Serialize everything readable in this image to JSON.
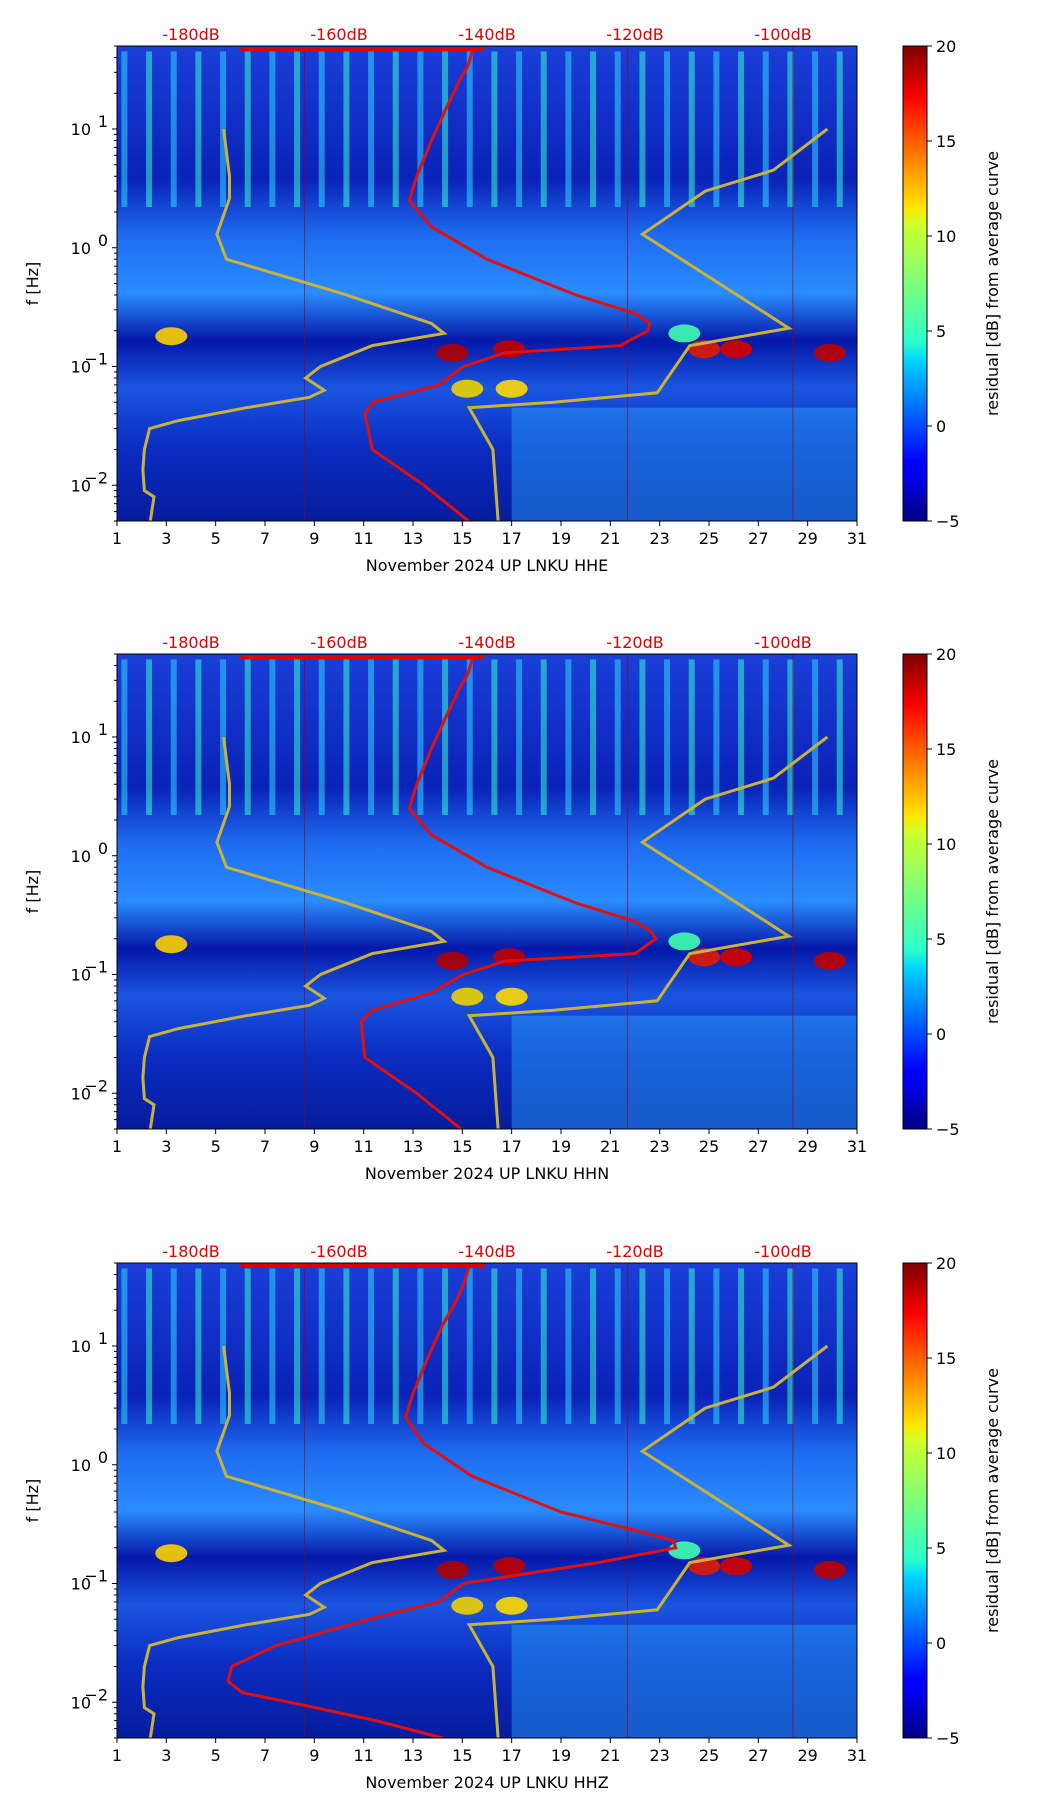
{
  "chart_data": [
    {
      "type": "heatmap",
      "channel": "HHE",
      "xlabel": "November 2024 UP LNKU  HHE",
      "ylabel": "f [Hz]",
      "x_ticks": [
        "1",
        "3",
        "5",
        "7",
        "9",
        "11",
        "13",
        "15",
        "17",
        "19",
        "21",
        "23",
        "25",
        "27",
        "29",
        "31"
      ],
      "x_range": [
        1,
        31
      ],
      "y_ticks": [
        {
          "value": 0.01,
          "base": "10",
          "exp": "−2"
        },
        {
          "value": 0.1,
          "base": "10",
          "exp": "−1"
        },
        {
          "value": 1,
          "base": "10",
          "exp": "0"
        },
        {
          "value": 10,
          "base": "10",
          "exp": "1"
        }
      ],
      "y_range": [
        0.005,
        50
      ],
      "db_labels": [
        "-180dB",
        "-160dB",
        "-140dB",
        "-120dB",
        "-100dB"
      ],
      "db_range": [
        -190,
        -90
      ],
      "colorbar": {
        "label": "residual [dB] from average curve",
        "ticks": [
          "20",
          "15",
          "10",
          "5",
          "0",
          "−5"
        ],
        "range": [
          -5,
          20
        ]
      },
      "noise_model_curve": [
        [
          -185.5,
          0.005
        ],
        [
          -185.0,
          0.008
        ],
        [
          -186.3,
          0.009
        ],
        [
          -186.5,
          0.0135
        ],
        [
          -186.3,
          0.02
        ],
        [
          -185.6,
          0.03
        ],
        [
          -181.7,
          0.035
        ],
        [
          -172.5,
          0.045
        ],
        [
          -164.0,
          0.055
        ],
        [
          -162.0,
          0.063
        ],
        [
          -164.5,
          0.08
        ],
        [
          -162.5,
          0.1
        ],
        [
          -155.5,
          0.15
        ],
        [
          -145.8,
          0.19
        ],
        [
          -147.5,
          0.23
        ],
        [
          -159.5,
          0.41
        ],
        [
          -175.2,
          0.8
        ],
        [
          -176.5,
          1.3
        ],
        [
          -174.8,
          2.6
        ],
        [
          -174.8,
          4.0
        ],
        [
          -175.6,
          10.0
        ]
      ],
      "high_noise_curve": [
        [
          -138.5,
          0.005
        ],
        [
          -139.2,
          0.02
        ],
        [
          -142.4,
          0.045
        ],
        [
          -131.0,
          0.05
        ],
        [
          -117.0,
          0.06
        ],
        [
          -112.6,
          0.15
        ],
        [
          -99.2,
          0.21
        ],
        [
          -119.0,
          1.3
        ],
        [
          -110.5,
          3.0
        ],
        [
          -101.3,
          4.5
        ],
        [
          -94.0,
          10.0
        ]
      ],
      "median_curve": [
        [
          -142.5,
          0.005
        ],
        [
          -148.5,
          0.01
        ],
        [
          -155.5,
          0.02
        ],
        [
          -156.5,
          0.04
        ],
        [
          -155.4,
          0.05
        ],
        [
          -146.5,
          0.07
        ],
        [
          -143.2,
          0.1
        ],
        [
          -137.6,
          0.13
        ],
        [
          -122.0,
          0.15
        ],
        [
          -118.3,
          0.2
        ],
        [
          -118.0,
          0.23
        ],
        [
          -120.0,
          0.28
        ],
        [
          -128.0,
          0.4
        ],
        [
          -140.0,
          0.8
        ],
        [
          -147.5,
          1.5
        ],
        [
          -150.5,
          2.5
        ],
        [
          -149.5,
          4.0
        ],
        [
          -147.5,
          8.0
        ],
        [
          -145.5,
          15.0
        ],
        [
          -143.8,
          25.0
        ],
        [
          -142.5,
          35.0
        ],
        [
          -142.0,
          45.0
        ]
      ]
    },
    {
      "type": "heatmap",
      "channel": "HHN",
      "xlabel": "November 2024 UP LNKU  HHN",
      "ylabel": "f [Hz]",
      "x_ticks": [
        "1",
        "3",
        "5",
        "7",
        "9",
        "11",
        "13",
        "15",
        "17",
        "19",
        "21",
        "23",
        "25",
        "27",
        "29",
        "31"
      ],
      "x_range": [
        1,
        31
      ],
      "y_ticks": [
        {
          "value": 0.01,
          "base": "10",
          "exp": "−2"
        },
        {
          "value": 0.1,
          "base": "10",
          "exp": "−1"
        },
        {
          "value": 1,
          "base": "10",
          "exp": "0"
        },
        {
          "value": 10,
          "base": "10",
          "exp": "1"
        }
      ],
      "y_range": [
        0.005,
        50
      ],
      "db_labels": [
        "-180dB",
        "-160dB",
        "-140dB",
        "-120dB",
        "-100dB"
      ],
      "db_range": [
        -190,
        -90
      ],
      "colorbar": {
        "label": "residual [dB] from average curve",
        "ticks": [
          "20",
          "15",
          "10",
          "5",
          "0",
          "−5"
        ],
        "range": [
          -5,
          20
        ]
      },
      "noise_model_curve": [
        [
          -185.5,
          0.005
        ],
        [
          -185.0,
          0.008
        ],
        [
          -186.3,
          0.009
        ],
        [
          -186.5,
          0.0135
        ],
        [
          -186.3,
          0.02
        ],
        [
          -185.6,
          0.03
        ],
        [
          -181.7,
          0.035
        ],
        [
          -172.5,
          0.045
        ],
        [
          -164.0,
          0.055
        ],
        [
          -162.0,
          0.063
        ],
        [
          -164.5,
          0.08
        ],
        [
          -162.5,
          0.1
        ],
        [
          -155.5,
          0.15
        ],
        [
          -145.8,
          0.19
        ],
        [
          -147.5,
          0.23
        ],
        [
          -159.5,
          0.41
        ],
        [
          -175.2,
          0.8
        ],
        [
          -176.5,
          1.3
        ],
        [
          -174.8,
          2.6
        ],
        [
          -174.8,
          4.0
        ],
        [
          -175.6,
          10.0
        ]
      ],
      "high_noise_curve": [
        [
          -138.5,
          0.005
        ],
        [
          -139.2,
          0.02
        ],
        [
          -142.4,
          0.045
        ],
        [
          -131.0,
          0.05
        ],
        [
          -117.0,
          0.06
        ],
        [
          -112.6,
          0.15
        ],
        [
          -99.2,
          0.21
        ],
        [
          -119.0,
          1.3
        ],
        [
          -110.5,
          3.0
        ],
        [
          -101.3,
          4.5
        ],
        [
          -94.0,
          10.0
        ]
      ],
      "median_curve": [
        [
          -143.5,
          0.005
        ],
        [
          -149.5,
          0.01
        ],
        [
          -156.5,
          0.02
        ],
        [
          -157.0,
          0.04
        ],
        [
          -155.5,
          0.05
        ],
        [
          -147.5,
          0.07
        ],
        [
          -143.2,
          0.1
        ],
        [
          -137.5,
          0.13
        ],
        [
          -120.0,
          0.15
        ],
        [
          -117.2,
          0.2
        ],
        [
          -117.8,
          0.23
        ],
        [
          -120.0,
          0.28
        ],
        [
          -128.0,
          0.4
        ],
        [
          -140.0,
          0.8
        ],
        [
          -147.5,
          1.5
        ],
        [
          -150.5,
          2.5
        ],
        [
          -149.5,
          4.0
        ],
        [
          -147.5,
          8.0
        ],
        [
          -145.5,
          15.0
        ],
        [
          -143.8,
          25.0
        ],
        [
          -142.5,
          35.0
        ],
        [
          -142.0,
          45.0
        ]
      ]
    },
    {
      "type": "heatmap",
      "channel": "HHZ",
      "xlabel": "November 2024 UP LNKU  HHZ",
      "ylabel": "f [Hz]",
      "x_ticks": [
        "1",
        "3",
        "5",
        "7",
        "9",
        "11",
        "13",
        "15",
        "17",
        "19",
        "21",
        "23",
        "25",
        "27",
        "29",
        "31"
      ],
      "x_range": [
        1,
        31
      ],
      "y_ticks": [
        {
          "value": 0.01,
          "base": "10",
          "exp": "−2"
        },
        {
          "value": 0.1,
          "base": "10",
          "exp": "−1"
        },
        {
          "value": 1,
          "base": "10",
          "exp": "0"
        },
        {
          "value": 10,
          "base": "10",
          "exp": "1"
        }
      ],
      "y_range": [
        0.005,
        50
      ],
      "db_labels": [
        "-180dB",
        "-160dB",
        "-140dB",
        "-120dB",
        "-100dB"
      ],
      "db_range": [
        -190,
        -90
      ],
      "colorbar": {
        "label": "residual [dB] from average curve",
        "ticks": [
          "20",
          "15",
          "10",
          "5",
          "0",
          "−5"
        ],
        "range": [
          -5,
          20
        ]
      },
      "noise_model_curve": [
        [
          -185.5,
          0.005
        ],
        [
          -185.0,
          0.008
        ],
        [
          -186.3,
          0.009
        ],
        [
          -186.5,
          0.0135
        ],
        [
          -186.3,
          0.02
        ],
        [
          -185.6,
          0.03
        ],
        [
          -181.7,
          0.035
        ],
        [
          -172.5,
          0.045
        ],
        [
          -164.0,
          0.055
        ],
        [
          -162.0,
          0.063
        ],
        [
          -164.5,
          0.08
        ],
        [
          -162.5,
          0.1
        ],
        [
          -155.5,
          0.15
        ],
        [
          -145.8,
          0.19
        ],
        [
          -147.5,
          0.23
        ],
        [
          -159.5,
          0.41
        ],
        [
          -175.2,
          0.8
        ],
        [
          -176.5,
          1.3
        ],
        [
          -174.8,
          2.6
        ],
        [
          -174.8,
          4.0
        ],
        [
          -175.6,
          10.0
        ]
      ],
      "high_noise_curve": [
        [
          -138.5,
          0.005
        ],
        [
          -139.2,
          0.02
        ],
        [
          -142.4,
          0.045
        ],
        [
          -131.0,
          0.05
        ],
        [
          -117.0,
          0.06
        ],
        [
          -112.6,
          0.15
        ],
        [
          -99.2,
          0.21
        ],
        [
          -119.0,
          1.3
        ],
        [
          -110.5,
          3.0
        ],
        [
          -101.3,
          4.5
        ],
        [
          -94.0,
          10.0
        ]
      ],
      "median_curve": [
        [
          -146.0,
          0.005
        ],
        [
          -155.0,
          0.007
        ],
        [
          -165.0,
          0.0095
        ],
        [
          -173.0,
          0.012
        ],
        [
          -175.0,
          0.015
        ],
        [
          -174.5,
          0.02
        ],
        [
          -168.5,
          0.03
        ],
        [
          -156.0,
          0.05
        ],
        [
          -146.5,
          0.07
        ],
        [
          -143.2,
          0.1
        ],
        [
          -125.0,
          0.15
        ],
        [
          -114.5,
          0.2
        ],
        [
          -114.8,
          0.23
        ],
        [
          -120.0,
          0.28
        ],
        [
          -130.0,
          0.4
        ],
        [
          -142.0,
          0.8
        ],
        [
          -148.5,
          1.5
        ],
        [
          -151.0,
          2.5
        ],
        [
          -150.0,
          4.0
        ],
        [
          -148.0,
          8.0
        ],
        [
          -146.0,
          15.0
        ],
        [
          -144.0,
          25.0
        ],
        [
          -143.0,
          35.0
        ],
        [
          -142.5,
          45.0
        ]
      ]
    }
  ]
}
